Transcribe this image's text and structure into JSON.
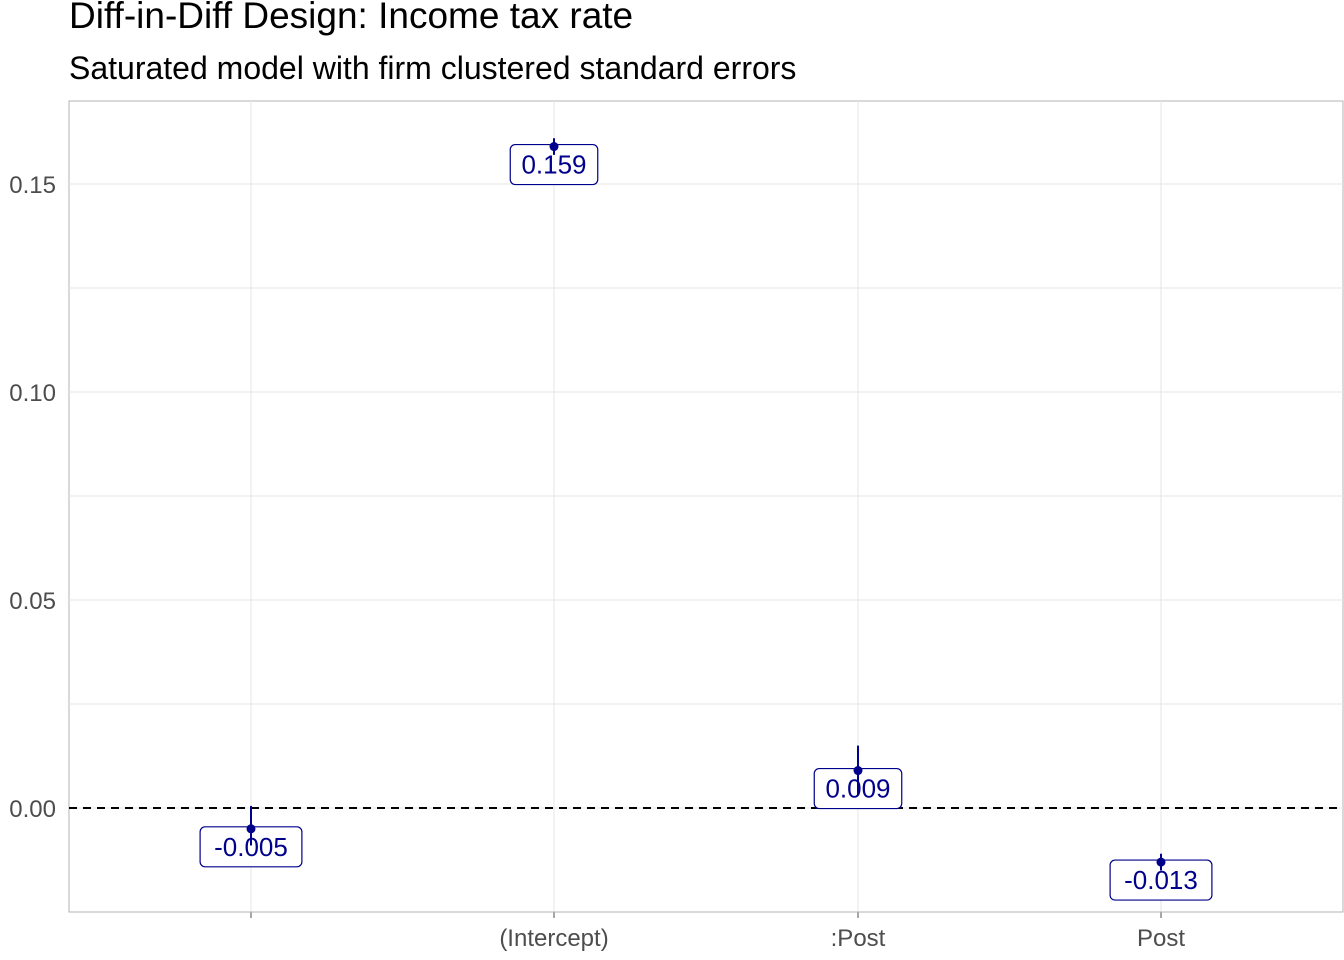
{
  "chart_data": {
    "type": "scatter",
    "title": "Diff-in-Diff Design: Income tax rate",
    "subtitle": "Saturated model with firm clustered standard errors",
    "xlabel": "",
    "ylabel": "",
    "categories": [
      "",
      "(Intercept)",
      ":Post",
      "Post"
    ],
    "estimates": [
      -0.005,
      0.159,
      0.009,
      -0.013
    ],
    "ci_low": [
      -0.009,
      0.157,
      0.003,
      -0.015
    ],
    "ci_high": [
      0.0005,
      0.161,
      0.015,
      -0.011
    ],
    "labels": [
      "-0.005",
      "0.159",
      "0.009",
      "-0.013"
    ],
    "reference_line": 0,
    "ylim": [
      -0.025,
      0.17
    ],
    "yticks": [
      0.0,
      0.05,
      0.1,
      0.15
    ],
    "ytick_labels": [
      "0.00",
      "0.05",
      "0.10",
      "0.15"
    ],
    "grid": true,
    "legend": "none",
    "colors": {
      "marker": "#00008b",
      "label_border": "#00008b",
      "grid": "#e6e6e6",
      "reference": "#000000"
    }
  }
}
